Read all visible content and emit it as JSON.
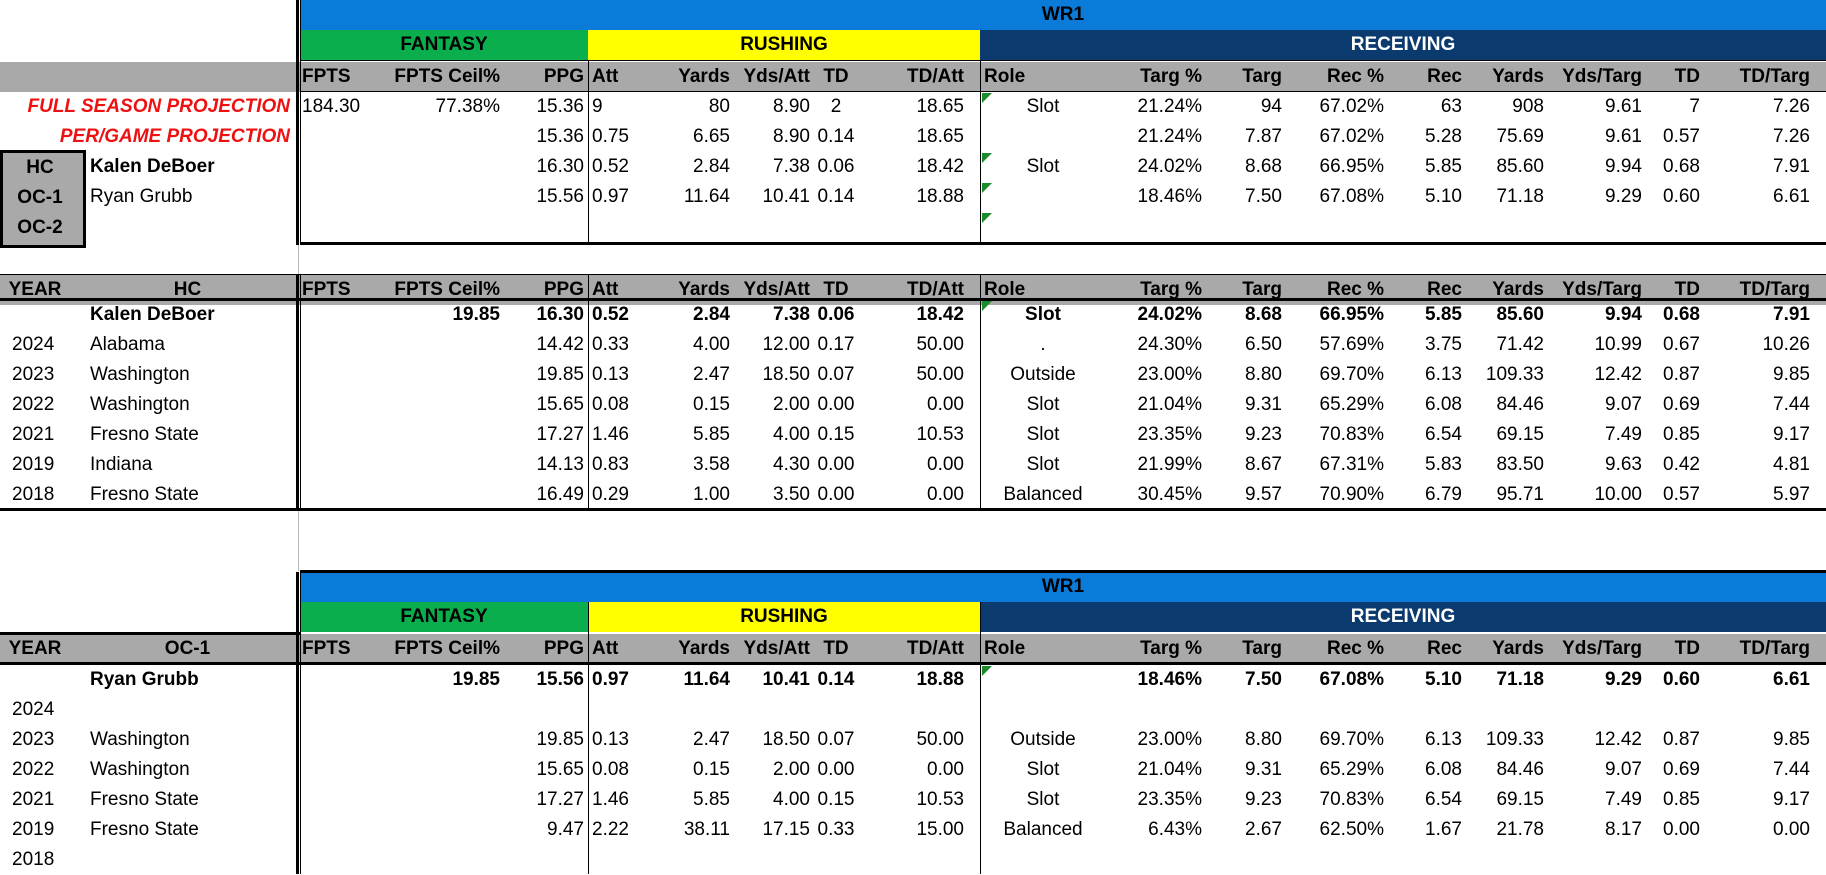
{
  "headers": {
    "wr1": "WR1",
    "fantasy": "FANTASY",
    "rushing": "RUSHING",
    "receiving": "RECEIVING",
    "columns": [
      "FPTS",
      "FPTS Ceil%",
      "PPG",
      "Att",
      "Yards",
      "Yds/Att",
      "TD",
      "TD/Att",
      "Role",
      "Targ %",
      "Targ",
      "Rec %",
      "Rec",
      "Yards",
      "Yds/Targ",
      "TD",
      "TD/Targ"
    ],
    "year": "YEAR",
    "hc": "HC",
    "oc1": "OC-1"
  },
  "projection": {
    "full_season_label": "FULL SEASON PROJECTION",
    "per_game_label": "PER/GAME PROJECTION",
    "full_season": [
      "184.30",
      "77.38%",
      "15.36",
      "9",
      "80",
      "8.90",
      "2",
      "18.65",
      "Slot",
      "21.24%",
      "94",
      "67.02%",
      "63",
      "908",
      "9.61",
      "7",
      "7.26"
    ],
    "per_game": [
      "",
      "",
      "15.36",
      "0.75",
      "6.65",
      "8.90",
      "0.14",
      "18.65",
      "",
      "21.24%",
      "7.87",
      "67.02%",
      "5.28",
      "75.69",
      "9.61",
      "0.57",
      "7.26"
    ]
  },
  "coaches": {
    "labels": [
      "HC",
      "OC-1",
      "OC-2"
    ],
    "names": [
      "Kalen DeBoer",
      "Ryan Grubb",
      ""
    ],
    "rows": [
      [
        "",
        "",
        "16.30",
        "0.52",
        "2.84",
        "7.38",
        "0.06",
        "18.42",
        "Slot",
        "24.02%",
        "8.68",
        "66.95%",
        "5.85",
        "85.60",
        "9.94",
        "0.68",
        "7.91"
      ],
      [
        "",
        "",
        "15.56",
        "0.97",
        "11.64",
        "10.41",
        "0.14",
        "18.88",
        "",
        "18.46%",
        "7.50",
        "67.08%",
        "5.10",
        "71.18",
        "9.29",
        "0.60",
        "6.61"
      ],
      [
        "",
        "",
        "",
        "",
        "",
        "",
        "",
        "",
        "",
        "",
        "",
        "",
        "",
        "",
        "",
        "",
        ""
      ]
    ]
  },
  "hc_table": {
    "summary": {
      "year": "",
      "name": "Kalen DeBoer",
      "values": [
        "",
        "19.85",
        "16.30",
        "0.52",
        "2.84",
        "7.38",
        "0.06",
        "18.42",
        "Slot",
        "24.02%",
        "8.68",
        "66.95%",
        "5.85",
        "85.60",
        "9.94",
        "0.68",
        "7.91"
      ]
    },
    "rows": [
      {
        "year": "2024",
        "name": "Alabama",
        "values": [
          "",
          "",
          "14.42",
          "0.33",
          "4.00",
          "12.00",
          "0.17",
          "50.00",
          ".",
          "24.30%",
          "6.50",
          "57.69%",
          "3.75",
          "71.42",
          "10.99",
          "0.67",
          "10.26"
        ]
      },
      {
        "year": "2023",
        "name": "Washington",
        "values": [
          "",
          "",
          "19.85",
          "0.13",
          "2.47",
          "18.50",
          "0.07",
          "50.00",
          "Outside",
          "23.00%",
          "8.80",
          "69.70%",
          "6.13",
          "109.33",
          "12.42",
          "0.87",
          "9.85"
        ]
      },
      {
        "year": "2022",
        "name": "Washington",
        "values": [
          "",
          "",
          "15.65",
          "0.08",
          "0.15",
          "2.00",
          "0.00",
          "0.00",
          "Slot",
          "21.04%",
          "9.31",
          "65.29%",
          "6.08",
          "84.46",
          "9.07",
          "0.69",
          "7.44"
        ]
      },
      {
        "year": "2021",
        "name": "Fresno State",
        "values": [
          "",
          "",
          "17.27",
          "1.46",
          "5.85",
          "4.00",
          "0.15",
          "10.53",
          "Slot",
          "23.35%",
          "9.23",
          "70.83%",
          "6.54",
          "69.15",
          "7.49",
          "0.85",
          "9.17"
        ]
      },
      {
        "year": "2019",
        "name": "Indiana",
        "values": [
          "",
          "",
          "14.13",
          "0.83",
          "3.58",
          "4.30",
          "0.00",
          "0.00",
          "Slot",
          "21.99%",
          "8.67",
          "67.31%",
          "5.83",
          "83.50",
          "9.63",
          "0.42",
          "4.81"
        ]
      },
      {
        "year": "2018",
        "name": "Fresno State",
        "values": [
          "",
          "",
          "16.49",
          "0.29",
          "1.00",
          "3.50",
          "0.00",
          "0.00",
          "Balanced",
          "30.45%",
          "9.57",
          "70.90%",
          "6.79",
          "95.71",
          "10.00",
          "0.57",
          "5.97"
        ]
      }
    ]
  },
  "oc_table": {
    "summary": {
      "year": "",
      "name": "Ryan Grubb",
      "values": [
        "",
        "19.85",
        "15.56",
        "0.97",
        "11.64",
        "10.41",
        "0.14",
        "18.88",
        "",
        "18.46%",
        "7.50",
        "67.08%",
        "5.10",
        "71.18",
        "9.29",
        "0.60",
        "6.61"
      ]
    },
    "rows": [
      {
        "year": "2024",
        "name": "",
        "values": [
          "",
          "",
          "",
          "",
          "",
          "",
          "",
          "",
          "",
          "",
          "",
          "",
          "",
          "",
          "",
          "",
          ""
        ]
      },
      {
        "year": "2023",
        "name": "Washington",
        "values": [
          "",
          "",
          "19.85",
          "0.13",
          "2.47",
          "18.50",
          "0.07",
          "50.00",
          "Outside",
          "23.00%",
          "8.80",
          "69.70%",
          "6.13",
          "109.33",
          "12.42",
          "0.87",
          "9.85"
        ]
      },
      {
        "year": "2022",
        "name": "Washington",
        "values": [
          "",
          "",
          "15.65",
          "0.08",
          "0.15",
          "2.00",
          "0.00",
          "0.00",
          "Slot",
          "21.04%",
          "9.31",
          "65.29%",
          "6.08",
          "84.46",
          "9.07",
          "0.69",
          "7.44"
        ]
      },
      {
        "year": "2021",
        "name": "Fresno State",
        "values": [
          "",
          "",
          "17.27",
          "1.46",
          "5.85",
          "4.00",
          "0.15",
          "10.53",
          "Slot",
          "23.35%",
          "9.23",
          "70.83%",
          "6.54",
          "69.15",
          "7.49",
          "0.85",
          "9.17"
        ]
      },
      {
        "year": "2019",
        "name": "Fresno State",
        "values": [
          "",
          "",
          "9.47",
          "2.22",
          "38.11",
          "17.15",
          "0.33",
          "15.00",
          "Balanced",
          "6.43%",
          "2.67",
          "62.50%",
          "1.67",
          "21.78",
          "8.17",
          "0.00",
          "0.00"
        ]
      },
      {
        "year": "2018",
        "name": "",
        "values": [
          "",
          "",
          "",
          "",
          "",
          "",
          "",
          "",
          "",
          "",
          "",
          "",
          "",
          "",
          "",
          "",
          ""
        ]
      }
    ]
  },
  "colors": {
    "wr_blue": "#0a7bd8",
    "fantasy_green": "#0aae4d",
    "rushing_yellow": "#ffff00",
    "receiving_navy": "#0a3a6e",
    "header_gray": "#a9a9a9",
    "projection_red": "#ee1111"
  }
}
